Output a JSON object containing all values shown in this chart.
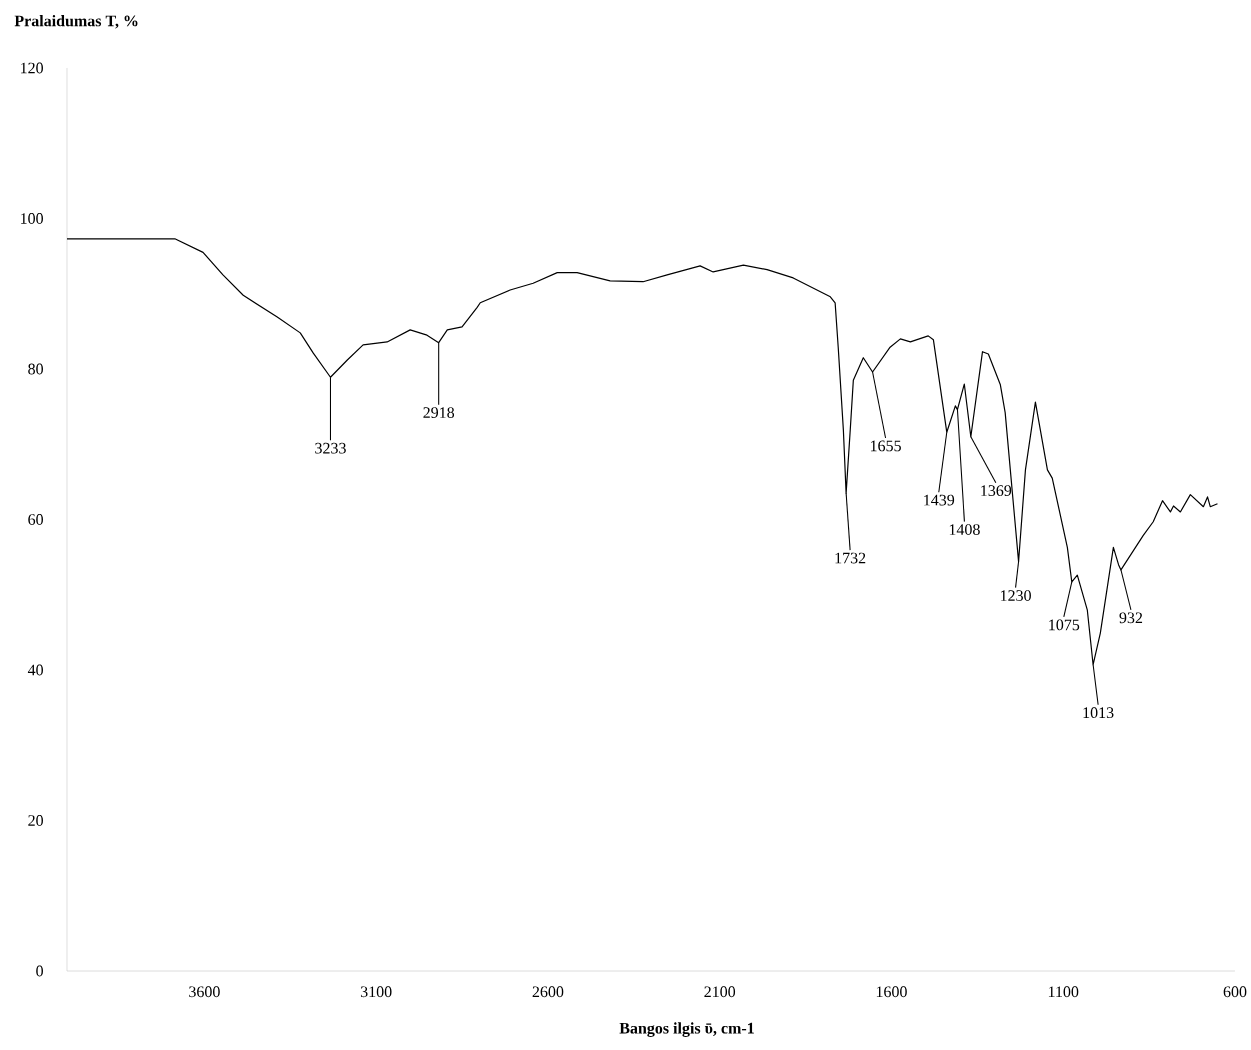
{
  "chart_data": {
    "type": "line",
    "xlabel": "Bangos ilgis ῡ, cm-1",
    "ylabel": "Pralaidumas  T, %",
    "color": "#000000",
    "x": [
      4000,
      3686,
      3604,
      3546,
      3487,
      3388,
      3321,
      3283,
      3233,
      3184,
      3138,
      3068,
      3001,
      2952,
      2918,
      2893,
      2850,
      2806,
      2797,
      2710,
      2643,
      2573,
      2515,
      2419,
      2323,
      2253,
      2157,
      2119,
      2031,
      1962,
      1886,
      1778,
      1764,
      1755,
      1740,
      1732,
      1720,
      1711,
      1682,
      1655,
      1604,
      1574,
      1545,
      1493,
      1478,
      1439,
      1414,
      1408,
      1388,
      1369,
      1335,
      1318,
      1283,
      1269,
      1230,
      1210,
      1181,
      1146,
      1132,
      1088,
      1075,
      1059,
      1030,
      1013,
      992,
      954,
      939,
      932,
      867,
      838,
      811,
      788,
      779,
      759,
      730,
      692,
      680,
      672,
      651
    ],
    "values": [
      97.3,
      97.3,
      95.5,
      92.5,
      89.8,
      86.9,
      84.8,
      82.1,
      78.9,
      81.2,
      83.2,
      83.6,
      85.2,
      84.5,
      83.5,
      85.2,
      85.6,
      88.2,
      88.8,
      90.5,
      91.4,
      92.8,
      92.8,
      91.7,
      91.6,
      92.5,
      93.7,
      92.9,
      93.8,
      93.2,
      92.1,
      89.6,
      88.8,
      82.9,
      71.9,
      63.5,
      71.9,
      78.5,
      81.5,
      79.6,
      82.9,
      84.0,
      83.6,
      84.4,
      83.9,
      71.6,
      75.1,
      74.6,
      78.0,
      71.0,
      82.3,
      82.0,
      77.9,
      74.2,
      54.4,
      66.6,
      75.6,
      66.6,
      65.5,
      56.3,
      51.7,
      52.6,
      48.0,
      40.7,
      44.9,
      56.3,
      54.0,
      53.3,
      57.9,
      59.7,
      62.5,
      61.0,
      61.8,
      61.0,
      63.3,
      61.7,
      63.0,
      61.7,
      62.1
    ],
    "xlim": [
      4000,
      600
    ],
    "xticks": [
      3600,
      3100,
      2600,
      2100,
      1600,
      1100,
      600
    ],
    "ylim": [
      0,
      120
    ],
    "yticks": [
      0,
      20,
      40,
      60,
      80,
      100,
      120
    ],
    "annotations": [
      {
        "text": "3233",
        "x": 3233,
        "y": 78.9
      },
      {
        "text": "2918",
        "x": 2918,
        "y": 83.5
      },
      {
        "text": "1732",
        "x": 1732,
        "y": 63.5
      },
      {
        "text": "1655",
        "x": 1655,
        "y": 79.6
      },
      {
        "text": "1439",
        "x": 1439,
        "y": 71.6
      },
      {
        "text": "1408",
        "x": 1408,
        "y": 74.6
      },
      {
        "text": "1369",
        "x": 1369,
        "y": 71.0
      },
      {
        "text": "1230",
        "x": 1230,
        "y": 54.4
      },
      {
        "text": "1075",
        "x": 1075,
        "y": 51.7
      },
      {
        "text": "1013",
        "x": 1013,
        "y": 40.7
      },
      {
        "text": "932",
        "x": 932,
        "y": 53.3
      }
    ]
  }
}
